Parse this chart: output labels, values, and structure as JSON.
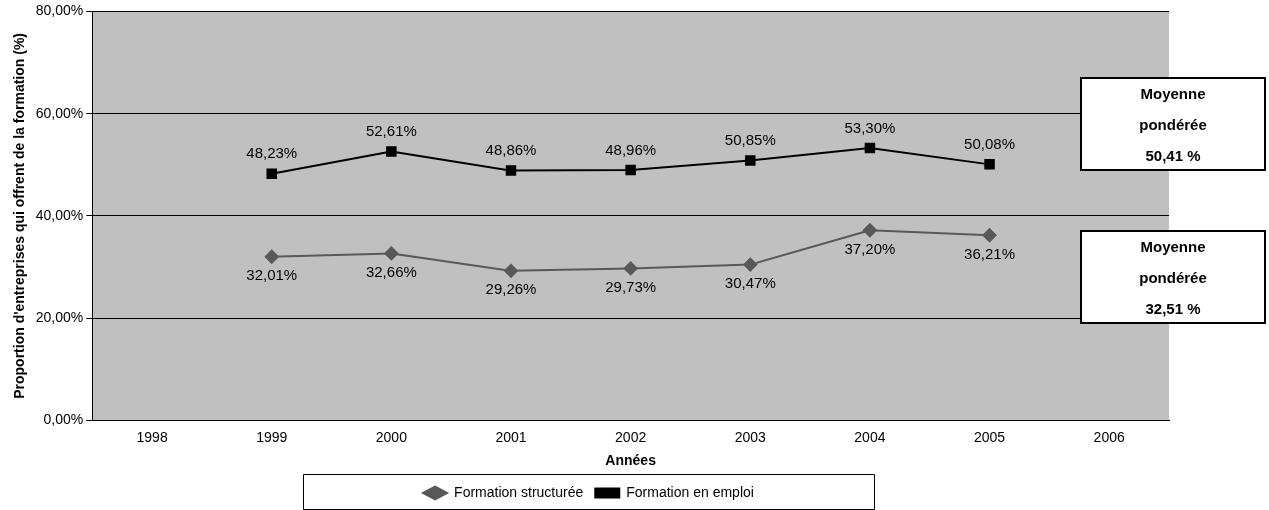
{
  "chart_data": {
    "type": "line",
    "xlabel": "Années",
    "ylabel": "Proportion d'entreprises qui offrent de la formation (%)",
    "categories": [
      "1998",
      "1999",
      "2000",
      "2001",
      "2002",
      "2003",
      "2004",
      "2005",
      "2006"
    ],
    "series": [
      {
        "name": "Formation structurée",
        "color": "#595959",
        "marker": "diamond",
        "values": [
          null,
          32.01,
          32.66,
          29.26,
          29.73,
          30.47,
          37.2,
          36.21,
          null
        ],
        "value_labels": [
          null,
          "32,01%",
          "32,66%",
          "29,26%",
          "29,73%",
          "30,47%",
          "37,20%",
          "36,21%",
          null
        ]
      },
      {
        "name": "Formation en emploi",
        "color": "#000000",
        "marker": "square",
        "values": [
          null,
          48.23,
          52.61,
          48.86,
          48.96,
          50.85,
          53.3,
          50.08,
          null
        ],
        "value_labels": [
          null,
          "48,23%",
          "52,61%",
          "48,86%",
          "48,96%",
          "50,85%",
          "53,30%",
          "50,08%",
          null
        ]
      }
    ],
    "ylim": [
      0,
      80
    ],
    "yticks": [
      {
        "value": 0,
        "label": "0,00%"
      },
      {
        "value": 20,
        "label": "20,00%"
      },
      {
        "value": 40,
        "label": "40,00%"
      },
      {
        "value": 60,
        "label": "60,00%"
      },
      {
        "value": 80,
        "label": "80,00%"
      }
    ],
    "grid": "y",
    "legend": "bottom",
    "line_style": "solid",
    "annotations": [
      "Moyenne pondérée 50,41 %",
      "Moyenne pondérée 32,51 %"
    ]
  }
}
